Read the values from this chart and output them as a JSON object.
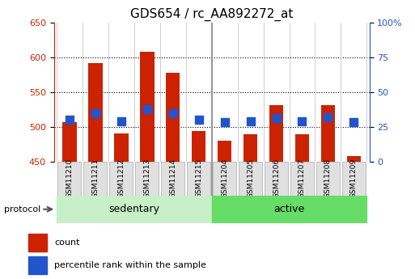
{
  "title": "GDS654 / rc_AA892272_at",
  "samples": [
    "GSM11210",
    "GSM11211",
    "GSM11212",
    "GSM11213",
    "GSM11214",
    "GSM11215",
    "GSM11204",
    "GSM11205",
    "GSM11206",
    "GSM11207",
    "GSM11208",
    "GSM11209"
  ],
  "bar_values": [
    507,
    591,
    491,
    608,
    578,
    494,
    480,
    490,
    531,
    490,
    531,
    458
  ],
  "blue_values": [
    510,
    520,
    508,
    525,
    520,
    510,
    507,
    508,
    513,
    508,
    514,
    507
  ],
  "bar_bottom": 450,
  "ylim_left": [
    450,
    650
  ],
  "ylim_right": [
    0,
    100
  ],
  "yticks_left": [
    450,
    500,
    550,
    600,
    650
  ],
  "yticks_right": [
    0,
    25,
    50,
    75,
    100
  ],
  "right_tick_labels": [
    "0",
    "25",
    "50",
    "75",
    "100%"
  ],
  "bar_color": "#cc2200",
  "blue_color": "#2255cc",
  "sedentary_color": "#c8f0c8",
  "active_color": "#66dd66",
  "title_fontsize": 11,
  "legend_count_label": "count",
  "legend_percentile_label": "percentile rank within the sample",
  "protocol_label": "protocol",
  "sedentary_label": "sedentary",
  "active_label": "active",
  "n_sedentary": 6,
  "n_active": 6
}
